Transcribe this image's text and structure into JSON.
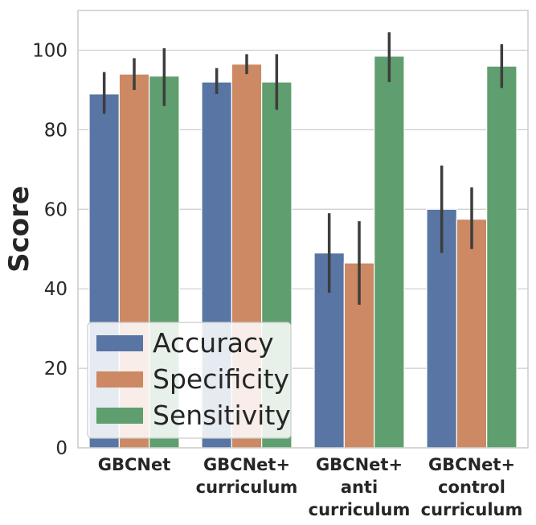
{
  "chart_data": {
    "type": "bar",
    "ylabel": "Score",
    "xlabel": "",
    "ylim": [
      0,
      110
    ],
    "yticks": [
      0,
      20,
      40,
      60,
      80,
      100
    ],
    "grid": true,
    "legend_position": "lower-left",
    "categories": [
      [
        "GBCNet"
      ],
      [
        "GBCNet+",
        "curriculum"
      ],
      [
        "GBCNet+",
        "anti",
        "curriculum"
      ],
      [
        "GBCNet+",
        "control",
        "curriculum"
      ]
    ],
    "series": [
      {
        "name": "Accuracy",
        "color": "#5875a4",
        "values": [
          89,
          92,
          49,
          60
        ],
        "error_low": [
          84,
          89,
          39,
          49
        ],
        "error_high": [
          94.5,
          95.5,
          59,
          71
        ]
      },
      {
        "name": "Specificity",
        "color": "#cc8963",
        "values": [
          94,
          96.5,
          46.5,
          57.5
        ],
        "error_low": [
          90,
          94,
          36,
          50
        ],
        "error_high": [
          98,
          99,
          57,
          65.5
        ]
      },
      {
        "name": "Sensitivity",
        "color": "#5f9e6e",
        "values": [
          93.5,
          92,
          98.5,
          96
        ],
        "error_low": [
          86,
          85,
          92,
          90.5
        ],
        "error_high": [
          100.5,
          99,
          104.5,
          101.5
        ]
      }
    ]
  },
  "colors": {
    "grid": "#cccccc",
    "axis": "#cccccc",
    "errorbar": "#3d3d3d"
  }
}
